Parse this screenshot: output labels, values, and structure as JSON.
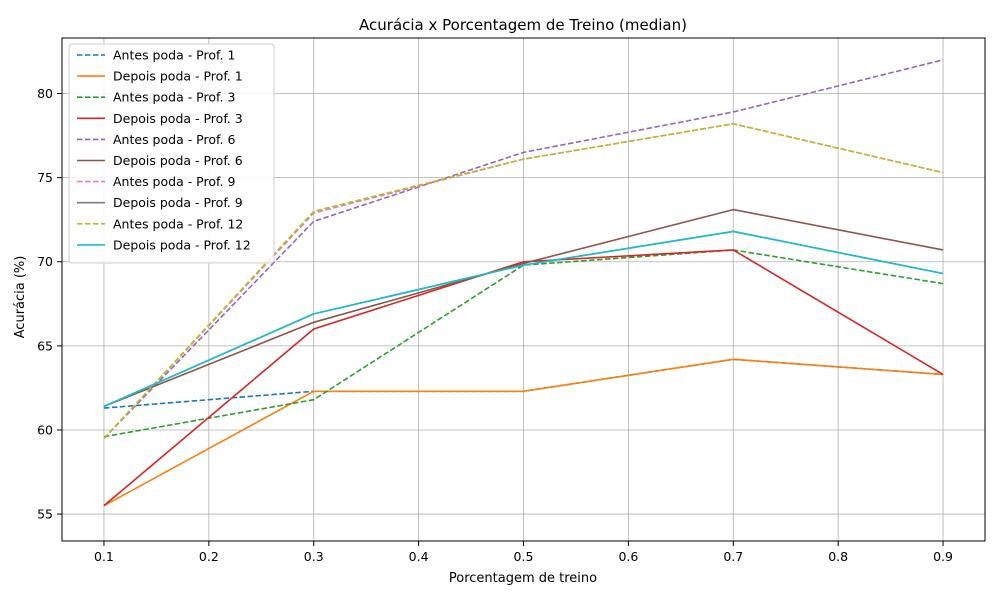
{
  "chart_data": {
    "type": "line",
    "title": "Acurácia x Porcentagem de Treino (median)",
    "xlabel": "Porcentagem de treino",
    "ylabel": "Acurácia (%)",
    "x": [
      0.1,
      0.3,
      0.5,
      0.7,
      0.9
    ],
    "xlim": [
      0.06,
      0.94
    ],
    "ylim": [
      53.4,
      83.3
    ],
    "xticks": [
      "0.1",
      "0.2",
      "0.3",
      "0.4",
      "0.5",
      "0.6",
      "0.7",
      "0.8",
      "0.9"
    ],
    "yticks": [
      "55",
      "60",
      "65",
      "70",
      "75",
      "80"
    ],
    "grid": true,
    "legend_position": "top-left",
    "series": [
      {
        "name": "Antes poda - Prof. 1",
        "style": "dashed",
        "color": "#1f77b4",
        "values": [
          61.3,
          62.3,
          62.3,
          64.2,
          63.3
        ]
      },
      {
        "name": "Depois poda - Prof. 1",
        "style": "solid",
        "color": "#ff7f0e",
        "values": [
          55.5,
          62.3,
          62.3,
          64.2,
          63.3
        ]
      },
      {
        "name": "Antes poda - Prof. 3",
        "style": "dashed",
        "color": "#2ca02c",
        "values": [
          59.6,
          61.8,
          69.8,
          70.7,
          68.7
        ]
      },
      {
        "name": "Depois poda - Prof. 3",
        "style": "solid",
        "color": "#d62728",
        "values": [
          55.5,
          66.0,
          70.0,
          70.7,
          63.3
        ]
      },
      {
        "name": "Antes poda - Prof. 6",
        "style": "dashed",
        "color": "#9467bd",
        "values": [
          59.5,
          72.4,
          76.5,
          78.9,
          82.0
        ]
      },
      {
        "name": "Depois poda - Prof. 6",
        "style": "solid",
        "color": "#8c564b",
        "values": [
          61.4,
          66.4,
          69.9,
          73.1,
          70.7
        ]
      },
      {
        "name": "Antes poda - Prof. 9",
        "style": "dashed",
        "color": "#e377c2",
        "values": [
          59.5,
          72.9,
          76.1,
          78.2,
          75.3
        ]
      },
      {
        "name": "Depois poda - Prof. 9",
        "style": "solid",
        "color": "#7f7f7f",
        "values": [
          61.4,
          66.9,
          69.8,
          71.8,
          69.3
        ]
      },
      {
        "name": "Antes poda - Prof. 12",
        "style": "dashed",
        "color": "#bcbd22",
        "values": [
          59.5,
          73.0,
          76.1,
          78.2,
          75.3
        ]
      },
      {
        "name": "Depois poda - Prof. 12",
        "style": "solid",
        "color": "#17becf",
        "values": [
          61.4,
          66.9,
          69.8,
          71.8,
          69.3
        ]
      }
    ]
  }
}
